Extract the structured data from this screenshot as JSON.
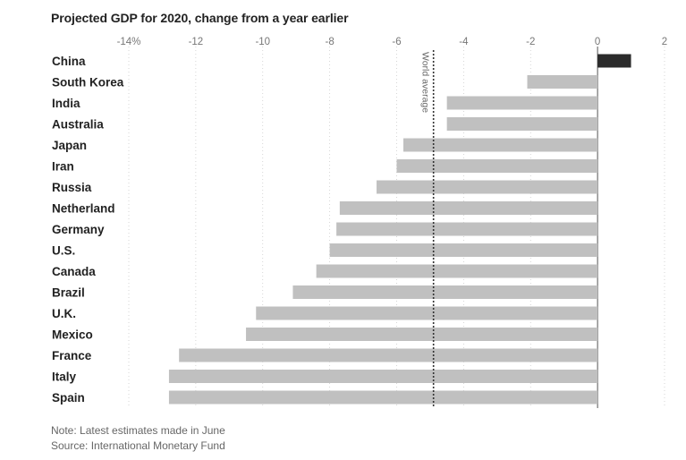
{
  "title": "Projected GDP for 2020, change from a year earlier",
  "note": "Note: Latest estimates made in June",
  "source": "Source: International Monetary Fund",
  "colors": {
    "negative": "#c0c0c0",
    "positive": "#2b2b2b",
    "grid": "#cccccc",
    "reference": "#333333"
  },
  "chart_data": {
    "type": "bar",
    "orientation": "horizontal",
    "title": "Projected GDP for 2020, change from a year earlier",
    "xlim": [
      -14,
      2
    ],
    "x_ticks": [
      -14,
      -12,
      -10,
      -8,
      -6,
      -4,
      -2,
      0,
      2
    ],
    "x_tick_labels": [
      "-14%",
      "-12",
      "-10",
      "-8",
      "-6",
      "-4",
      "-2",
      "0",
      "2"
    ],
    "grid": true,
    "categories": [
      "China",
      "South Korea",
      "India",
      "Australia",
      "Japan",
      "Iran",
      "Russia",
      "Netherland",
      "Germany",
      "U.S.",
      "Canada",
      "Brazil",
      "U.K.",
      "Mexico",
      "France",
      "Italy",
      "Spain"
    ],
    "values": [
      1.0,
      -2.1,
      -4.5,
      -4.5,
      -5.8,
      -6.0,
      -6.6,
      -7.7,
      -7.8,
      -8.0,
      -8.4,
      -9.1,
      -10.2,
      -10.5,
      -12.5,
      -12.8,
      -12.8
    ],
    "reference_line": {
      "label": "World average",
      "value": -4.9
    }
  }
}
